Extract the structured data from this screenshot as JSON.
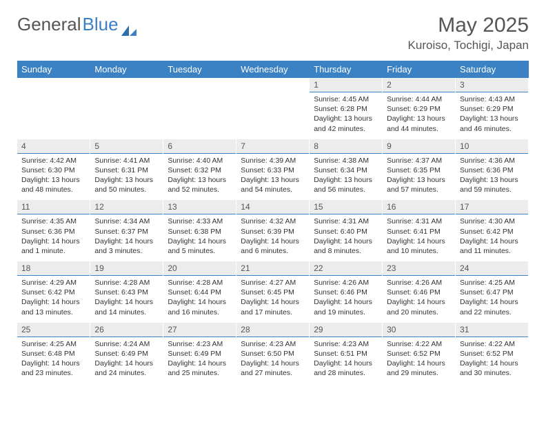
{
  "brand": {
    "part1": "General",
    "part2": "Blue"
  },
  "title": "May 2025",
  "location": "Kuroiso, Tochigi, Japan",
  "colors": {
    "header_bg": "#3b82c4",
    "header_text": "#ffffff",
    "daynum_bg": "#ececec",
    "daynum_border": "#3b82c4",
    "text": "#333333",
    "title_text": "#555555"
  },
  "typography": {
    "title_fontsize": 30,
    "location_fontsize": 17,
    "dayhead_fontsize": 13,
    "body_fontsize": 10.5
  },
  "days_of_week": [
    "Sunday",
    "Monday",
    "Tuesday",
    "Wednesday",
    "Thursday",
    "Friday",
    "Saturday"
  ],
  "weeks": [
    [
      null,
      null,
      null,
      null,
      {
        "n": "1",
        "sunrise": "4:45 AM",
        "sunset": "6:28 PM",
        "daylight": "13 hours and 42 minutes."
      },
      {
        "n": "2",
        "sunrise": "4:44 AM",
        "sunset": "6:29 PM",
        "daylight": "13 hours and 44 minutes."
      },
      {
        "n": "3",
        "sunrise": "4:43 AM",
        "sunset": "6:29 PM",
        "daylight": "13 hours and 46 minutes."
      }
    ],
    [
      {
        "n": "4",
        "sunrise": "4:42 AM",
        "sunset": "6:30 PM",
        "daylight": "13 hours and 48 minutes."
      },
      {
        "n": "5",
        "sunrise": "4:41 AM",
        "sunset": "6:31 PM",
        "daylight": "13 hours and 50 minutes."
      },
      {
        "n": "6",
        "sunrise": "4:40 AM",
        "sunset": "6:32 PM",
        "daylight": "13 hours and 52 minutes."
      },
      {
        "n": "7",
        "sunrise": "4:39 AM",
        "sunset": "6:33 PM",
        "daylight": "13 hours and 54 minutes."
      },
      {
        "n": "8",
        "sunrise": "4:38 AM",
        "sunset": "6:34 PM",
        "daylight": "13 hours and 56 minutes."
      },
      {
        "n": "9",
        "sunrise": "4:37 AM",
        "sunset": "6:35 PM",
        "daylight": "13 hours and 57 minutes."
      },
      {
        "n": "10",
        "sunrise": "4:36 AM",
        "sunset": "6:36 PM",
        "daylight": "13 hours and 59 minutes."
      }
    ],
    [
      {
        "n": "11",
        "sunrise": "4:35 AM",
        "sunset": "6:36 PM",
        "daylight": "14 hours and 1 minute."
      },
      {
        "n": "12",
        "sunrise": "4:34 AM",
        "sunset": "6:37 PM",
        "daylight": "14 hours and 3 minutes."
      },
      {
        "n": "13",
        "sunrise": "4:33 AM",
        "sunset": "6:38 PM",
        "daylight": "14 hours and 5 minutes."
      },
      {
        "n": "14",
        "sunrise": "4:32 AM",
        "sunset": "6:39 PM",
        "daylight": "14 hours and 6 minutes."
      },
      {
        "n": "15",
        "sunrise": "4:31 AM",
        "sunset": "6:40 PM",
        "daylight": "14 hours and 8 minutes."
      },
      {
        "n": "16",
        "sunrise": "4:31 AM",
        "sunset": "6:41 PM",
        "daylight": "14 hours and 10 minutes."
      },
      {
        "n": "17",
        "sunrise": "4:30 AM",
        "sunset": "6:42 PM",
        "daylight": "14 hours and 11 minutes."
      }
    ],
    [
      {
        "n": "18",
        "sunrise": "4:29 AM",
        "sunset": "6:42 PM",
        "daylight": "14 hours and 13 minutes."
      },
      {
        "n": "19",
        "sunrise": "4:28 AM",
        "sunset": "6:43 PM",
        "daylight": "14 hours and 14 minutes."
      },
      {
        "n": "20",
        "sunrise": "4:28 AM",
        "sunset": "6:44 PM",
        "daylight": "14 hours and 16 minutes."
      },
      {
        "n": "21",
        "sunrise": "4:27 AM",
        "sunset": "6:45 PM",
        "daylight": "14 hours and 17 minutes."
      },
      {
        "n": "22",
        "sunrise": "4:26 AM",
        "sunset": "6:46 PM",
        "daylight": "14 hours and 19 minutes."
      },
      {
        "n": "23",
        "sunrise": "4:26 AM",
        "sunset": "6:46 PM",
        "daylight": "14 hours and 20 minutes."
      },
      {
        "n": "24",
        "sunrise": "4:25 AM",
        "sunset": "6:47 PM",
        "daylight": "14 hours and 22 minutes."
      }
    ],
    [
      {
        "n": "25",
        "sunrise": "4:25 AM",
        "sunset": "6:48 PM",
        "daylight": "14 hours and 23 minutes."
      },
      {
        "n": "26",
        "sunrise": "4:24 AM",
        "sunset": "6:49 PM",
        "daylight": "14 hours and 24 minutes."
      },
      {
        "n": "27",
        "sunrise": "4:23 AM",
        "sunset": "6:49 PM",
        "daylight": "14 hours and 25 minutes."
      },
      {
        "n": "28",
        "sunrise": "4:23 AM",
        "sunset": "6:50 PM",
        "daylight": "14 hours and 27 minutes."
      },
      {
        "n": "29",
        "sunrise": "4:23 AM",
        "sunset": "6:51 PM",
        "daylight": "14 hours and 28 minutes."
      },
      {
        "n": "30",
        "sunrise": "4:22 AM",
        "sunset": "6:52 PM",
        "daylight": "14 hours and 29 minutes."
      },
      {
        "n": "31",
        "sunrise": "4:22 AM",
        "sunset": "6:52 PM",
        "daylight": "14 hours and 30 minutes."
      }
    ]
  ],
  "labels": {
    "sunrise_prefix": "Sunrise: ",
    "sunset_prefix": "Sunset: ",
    "daylight_prefix": "Daylight: "
  }
}
